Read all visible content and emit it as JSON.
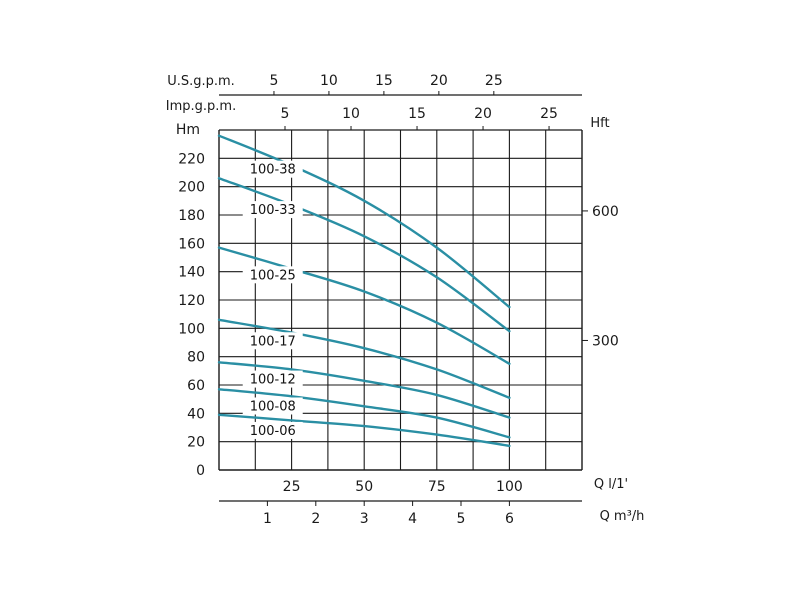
{
  "chart_data": {
    "type": "line",
    "title": "",
    "axes": {
      "y_left": {
        "label": "Hm",
        "range": [
          0,
          240
        ],
        "ticks": [
          0,
          20,
          40,
          60,
          80,
          100,
          120,
          140,
          160,
          180,
          200,
          220
        ]
      },
      "y_right": {
        "label": "Hft",
        "ticks": [
          300,
          600
        ]
      },
      "x_lpm": {
        "label": "Q l/1'",
        "range": [
          0,
          125
        ],
        "ticks": [
          25,
          50,
          75,
          100
        ]
      },
      "x_m3h": {
        "label": "Q m³/h",
        "ticks": [
          1,
          2,
          3,
          4,
          5,
          6
        ]
      },
      "x_usgpm": {
        "label": "U.S.g.p.m.",
        "ticks": [
          5,
          10,
          15,
          20,
          25
        ]
      },
      "x_impgpm": {
        "label": "Imp.g.p.m.",
        "ticks": [
          5,
          10,
          15,
          20,
          25
        ]
      }
    },
    "grid": true,
    "x_unit": "l/min",
    "series": [
      {
        "name": "100-38",
        "x": [
          0,
          25,
          50,
          75,
          100
        ],
        "y": [
          236,
          215,
          190,
          157,
          115
        ]
      },
      {
        "name": "100-33",
        "x": [
          0,
          25,
          50,
          75,
          100
        ],
        "y": [
          206,
          187,
          165,
          136,
          98
        ]
      },
      {
        "name": "100-25",
        "x": [
          0,
          25,
          50,
          75,
          100
        ],
        "y": [
          157,
          142,
          126,
          104,
          75
        ]
      },
      {
        "name": "100-17",
        "x": [
          0,
          25,
          50,
          75,
          100
        ],
        "y": [
          106,
          97,
          86,
          71,
          51
        ]
      },
      {
        "name": "100-12",
        "x": [
          0,
          25,
          50,
          75,
          100
        ],
        "y": [
          76,
          71,
          63,
          53,
          37
        ]
      },
      {
        "name": "100-08",
        "x": [
          0,
          25,
          50,
          75,
          100
        ],
        "y": [
          57,
          52,
          45,
          37,
          23
        ]
      },
      {
        "name": "100-06",
        "x": [
          0,
          25,
          50,
          75,
          100
        ],
        "y": [
          39,
          35,
          31,
          25,
          17
        ]
      }
    ],
    "colors": {
      "curve": "#2a8fa4",
      "grid": "#1a1a1a"
    }
  }
}
